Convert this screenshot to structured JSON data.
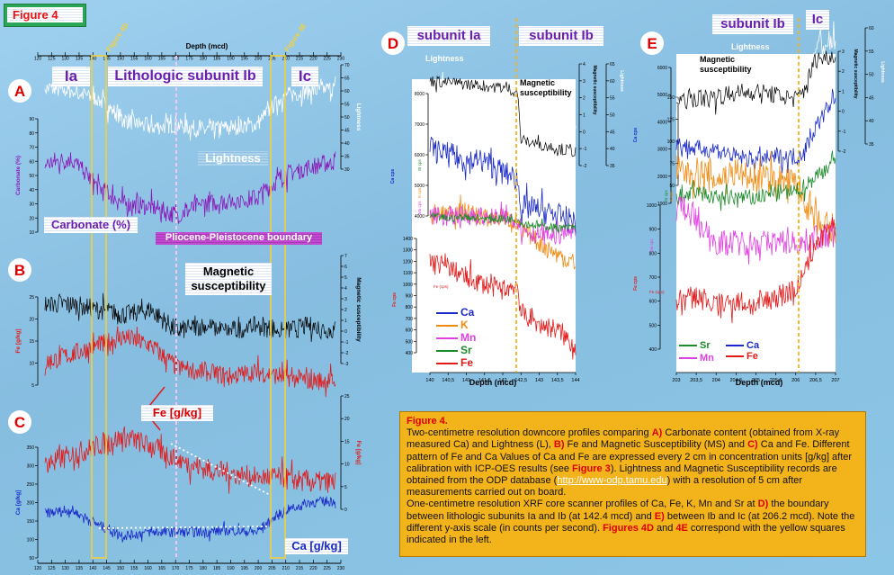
{
  "figure_label": "Figure 4",
  "panel_letters": [
    "A",
    "B",
    "C",
    "D",
    "E"
  ],
  "colors": {
    "carbonate": "#8a18b8",
    "lightness": "#ffffff",
    "fe": "#e21a1a",
    "ms": "#000000",
    "ca": "#1a2ac8",
    "k": "#f08a10",
    "mn": "#e040e0",
    "sr": "#1a8a2a",
    "boundary": "#f3b31a"
  },
  "left": {
    "depth_title": "Depth (mcd)",
    "depth_ticks": [
      "120",
      "125",
      "130",
      "135",
      "140",
      "145",
      "150",
      "155",
      "160",
      "165",
      "170",
      "175",
      "180",
      "185",
      "190",
      "195",
      "200",
      "205",
      "210",
      "215",
      "220",
      "225",
      "230"
    ],
    "depth_ticks_bottom": [
      "120",
      "125",
      "130",
      "135",
      "140",
      "145",
      "150",
      "155",
      "160",
      "165",
      "170",
      "175",
      "180",
      "185",
      "190",
      "195",
      "200",
      "205",
      "210",
      "215",
      "220",
      "225",
      "230"
    ],
    "boxes": [
      "Figure 4D",
      "Figure 4E"
    ],
    "subunits": [
      "Ia",
      "Lithologic subunit Ib",
      "Ic"
    ],
    "panel_a": {
      "label_lightness": "Lightness",
      "label_carbonate": "Carbonate (%)",
      "ylabel_left": "Carbonate (%)",
      "ylabel_right": "Lightness",
      "left_ticks": [
        "90",
        "80",
        "70",
        "60",
        "50",
        "40",
        "30",
        "20",
        "10"
      ],
      "right_ticks": [
        "70",
        "65",
        "60",
        "55",
        "50",
        "45",
        "40",
        "35",
        "30"
      ]
    },
    "boundary_label": "Pliocene-Pleistocene boundary",
    "panel_b": {
      "label_ms": "Magnetic susceptibility",
      "ylabel_left": "Fe [g/kg]",
      "ylabel_right": "Magnetic susceptibility",
      "left_ticks": [
        "25",
        "20",
        "15",
        "10",
        "5"
      ],
      "right_ticks": [
        "7",
        "6",
        "5",
        "4",
        "3",
        "2",
        "1",
        "0",
        "-1",
        "-2",
        "-3"
      ]
    },
    "panel_c": {
      "label_fe": "Fe  [g/kg]",
      "label_ca": "Ca [g/kg]",
      "ylabel_left": "Ca [g/kg]",
      "ylabel_right": "Fe [g/kg]",
      "left_ticks": [
        "350",
        "300",
        "250",
        "200",
        "150",
        "100",
        "50"
      ],
      "right_ticks": [
        "25",
        "20",
        "15",
        "10",
        "5",
        "0"
      ]
    }
  },
  "panel_d": {
    "subunit_left": "subunit Ia",
    "subunit_right": "subunit Ib",
    "label_lightness": "Lightness",
    "label_ms": "Magnetic susceptibility",
    "xlabel": "Depth (mcd)",
    "x_ticks": [
      "140",
      "140,5",
      "141",
      "141,5",
      "142",
      "142,5",
      "143",
      "143,5",
      "144"
    ],
    "ca_ticks": [
      "8000",
      "7000",
      "6000",
      "5000",
      "4000"
    ],
    "ylabel_ca": "Ca cps",
    "ylabel_fe": "Fe cps",
    "fe_ticks": [
      "1400",
      "1300",
      "1200",
      "1100",
      "1000",
      "900",
      "800",
      "700",
      "600",
      "500",
      "400"
    ],
    "ms_ticks": [
      "4",
      "3",
      "2",
      "1",
      "0",
      "-1",
      "-2"
    ],
    "ms_label": "Magnetic susceptibility",
    "l_ticks": [
      "65",
      "60",
      "55",
      "50",
      "45",
      "40",
      "35"
    ],
    "l_label": "Lightness",
    "small_labels": [
      "Sr cps",
      "K cps",
      "Mn cps",
      "Fe (cps)"
    ],
    "legend": [
      "Ca",
      "K",
      "Mn",
      "Sr",
      "Fe"
    ]
  },
  "panel_e": {
    "subunit_left": "subunit Ib",
    "subunit_right": "Ic",
    "label_lightness": "Lightness",
    "label_ms": "Magnetic susceptibility",
    "xlabel": "Depth (mcd)",
    "x_ticks": [
      "203",
      "203,5",
      "204",
      "204,5",
      "205",
      "205,5",
      "206",
      "206,5",
      "207"
    ],
    "ca_ticks": [
      "6000",
      "5000",
      "4000",
      "3000",
      "2000",
      "1000"
    ],
    "ylabel_ca": "Ca cps",
    "ylabel_fe": "Fe cps",
    "fe_ticks": [
      "1000",
      "900",
      "800",
      "700",
      "600",
      "500",
      "400"
    ],
    "ms_ticks": [
      "150",
      "125",
      "100",
      "75",
      "50"
    ],
    "ms_right_ticks": [
      "3",
      "2",
      "1",
      "0",
      "-1",
      "-2"
    ],
    "ms_label": "Magnetic susceptibility",
    "l_ticks": [
      "60",
      "55",
      "50",
      "45",
      "40",
      "35"
    ],
    "l_label": "Lightness",
    "small_labels": [
      "Sr cps",
      "K cps",
      "Mn cps",
      "Fe (cps)"
    ],
    "legend": [
      "Sr",
      "Ca",
      "Mn",
      "Fe"
    ]
  },
  "caption": {
    "title": "Figure 4.",
    "p1": [
      "Two-centimetre resolution downcore profiles comparing ",
      "A)",
      " Carbonate content (obtained from X-ray measured Ca) and Lightness (L), ",
      "B)",
      " Fe and Magnetic Susceptibility (MS) and ",
      "C)",
      " Ca and Fe. Different pattern of Fe and Ca Values of Ca and Fe are expressed every 2 cm in concentration units [g/kg] after calibration with ICP-OES results (see ",
      "Figure 3",
      "). Lightness and Magnetic Susceptibility records are obtained from the ODP database (",
      "http://www-odp.tamu.edu",
      ") with a resolution of 5 cm after measurements carried out on board."
    ],
    "p2": [
      "One-centimetre resolution XRF core scanner profiles of Ca, Fe, K, Mn and Sr at ",
      "D)",
      " the boundary between lithologic subunits Ia and Ib (at 142.4 mcd) and ",
      "E)",
      " between Ib and Ic (at 206.2 mcd). Note the different y-axis scale (in counts per second). ",
      "Figures 4D",
      " and ",
      "4E",
      " correspond with the yellow squares indicated in the left."
    ]
  },
  "chart_data": [
    {
      "type": "line",
      "panel": "A",
      "xlabel": "Depth (mcd)",
      "xlim": [
        120,
        230
      ],
      "series": [
        {
          "name": "Lightness",
          "x": [
            120,
            130,
            140,
            150,
            160,
            170,
            180,
            190,
            200,
            210,
            220,
            230
          ],
          "values": [
            61,
            60,
            57,
            49,
            46,
            47,
            45,
            46,
            47,
            58,
            60,
            61
          ]
        },
        {
          "name": "Carbonate (%)",
          "x": [
            120,
            130,
            140,
            150,
            160,
            170,
            180,
            190,
            200,
            210,
            220,
            230
          ],
          "values": [
            58,
            62,
            42,
            30,
            28,
            22,
            30,
            32,
            34,
            50,
            56,
            60
          ]
        }
      ]
    },
    {
      "type": "line",
      "panel": "B",
      "xlabel": "Depth (mcd)",
      "xlim": [
        120,
        230
      ],
      "series": [
        {
          "name": "Magnetic susceptibility",
          "x": [
            120,
            130,
            140,
            150,
            160,
            170,
            180,
            190,
            200,
            210,
            220,
            230
          ],
          "values": [
            2.5,
            2.5,
            2,
            1.5,
            2,
            0,
            0.5,
            0,
            0.5,
            0,
            0.5,
            0
          ]
        },
        {
          "name": "Fe [g/kg]",
          "x": [
            120,
            130,
            140,
            150,
            160,
            170,
            180,
            190,
            200,
            210,
            220,
            230
          ],
          "values": [
            10,
            12,
            14,
            16,
            14,
            9,
            8,
            7,
            8,
            7,
            6,
            6
          ]
        }
      ]
    },
    {
      "type": "line",
      "panel": "C",
      "xlabel": "Depth (mcd)",
      "xlim": [
        120,
        230
      ],
      "series": [
        {
          "name": "Fe [g/kg]",
          "x": [
            120,
            130,
            140,
            150,
            160,
            170,
            180,
            190,
            200,
            210,
            220,
            230
          ],
          "values": [
            10,
            12,
            14,
            16,
            14,
            11,
            9,
            8,
            7,
            7,
            6,
            6
          ]
        },
        {
          "name": "Ca [g/kg]",
          "x": [
            120,
            130,
            140,
            150,
            160,
            170,
            180,
            190,
            200,
            210,
            220,
            230
          ],
          "values": [
            170,
            180,
            140,
            110,
            120,
            120,
            120,
            125,
            120,
            175,
            200,
            205
          ]
        }
      ]
    },
    {
      "type": "line",
      "panel": "D",
      "xlabel": "Depth (mcd)",
      "xlim": [
        140,
        144
      ],
      "series": [
        {
          "name": "Ca",
          "x": [
            140,
            140.5,
            141,
            141.5,
            142,
            142.4,
            142.5,
            143,
            143.5,
            144
          ],
          "values": [
            6200,
            6000,
            5800,
            5800,
            5400,
            5200,
            4300,
            4200,
            4000,
            3800
          ]
        },
        {
          "name": "K",
          "x": [
            140,
            140.5,
            141,
            141.5,
            142,
            142.4,
            142.5,
            143,
            143.5,
            144
          ],
          "values": [
            1900,
            2000,
            2000,
            1900,
            1900,
            1850,
            1700,
            1500,
            1300,
            1150
          ]
        },
        {
          "name": "Mn",
          "x": [
            140,
            140.5,
            141,
            141.5,
            142,
            142.4,
            142.5,
            143,
            143.5,
            144
          ],
          "values": [
            1700,
            1650,
            1700,
            1650,
            1650,
            1650,
            1500,
            1400,
            1400,
            1450
          ]
        },
        {
          "name": "Sr",
          "x": [
            140,
            140.5,
            141,
            141.5,
            142,
            142.4,
            142.5,
            143,
            143.5,
            144
          ],
          "values": [
            1550,
            1500,
            1550,
            1500,
            1500,
            1500,
            1400,
            1350,
            1300,
            1300
          ]
        },
        {
          "name": "Fe",
          "x": [
            140,
            140.5,
            141,
            141.5,
            142,
            142.4,
            142.5,
            143,
            143.5,
            144
          ],
          "values": [
            1200,
            1150,
            1050,
            1000,
            950,
            1000,
            750,
            650,
            600,
            450
          ]
        }
      ]
    },
    {
      "type": "line",
      "panel": "E",
      "xlabel": "Depth (mcd)",
      "xlim": [
        203,
        207
      ],
      "series": [
        {
          "name": "Ca",
          "x": [
            203,
            203.5,
            204,
            204.5,
            205,
            205.5,
            206,
            206.2,
            206.5,
            207
          ],
          "values": [
            3200,
            3000,
            3000,
            2700,
            2600,
            2700,
            2700,
            2900,
            3800,
            5000
          ]
        },
        {
          "name": "K",
          "x": [
            203,
            203.5,
            204,
            204.5,
            205,
            205.5,
            206,
            206.2,
            206.5,
            207
          ],
          "values": [
            2400,
            2400,
            2300,
            2400,
            2300,
            2300,
            2200,
            2000,
            1600,
            1400
          ]
        },
        {
          "name": "Sr",
          "x": [
            203,
            203.5,
            204,
            204.5,
            205,
            205.5,
            206,
            206.2,
            206.5,
            207
          ],
          "values": [
            2000,
            2100,
            2000,
            2000,
            2000,
            2100,
            2100,
            2200,
            2400,
            2700
          ]
        },
        {
          "name": "Mn",
          "x": [
            203,
            203.5,
            204,
            204.5,
            205,
            205.5,
            206,
            206.2,
            206.5,
            207
          ],
          "values": [
            1700,
            1500,
            1300,
            1300,
            1300,
            1300,
            1300,
            1300,
            1350,
            1350
          ]
        },
        {
          "name": "Fe",
          "x": [
            203,
            203.5,
            204,
            204.5,
            205,
            205.5,
            206,
            206.2,
            206.5,
            207
          ],
          "values": [
            600,
            620,
            580,
            600,
            580,
            620,
            650,
            700,
            850,
            900
          ]
        }
      ]
    }
  ]
}
